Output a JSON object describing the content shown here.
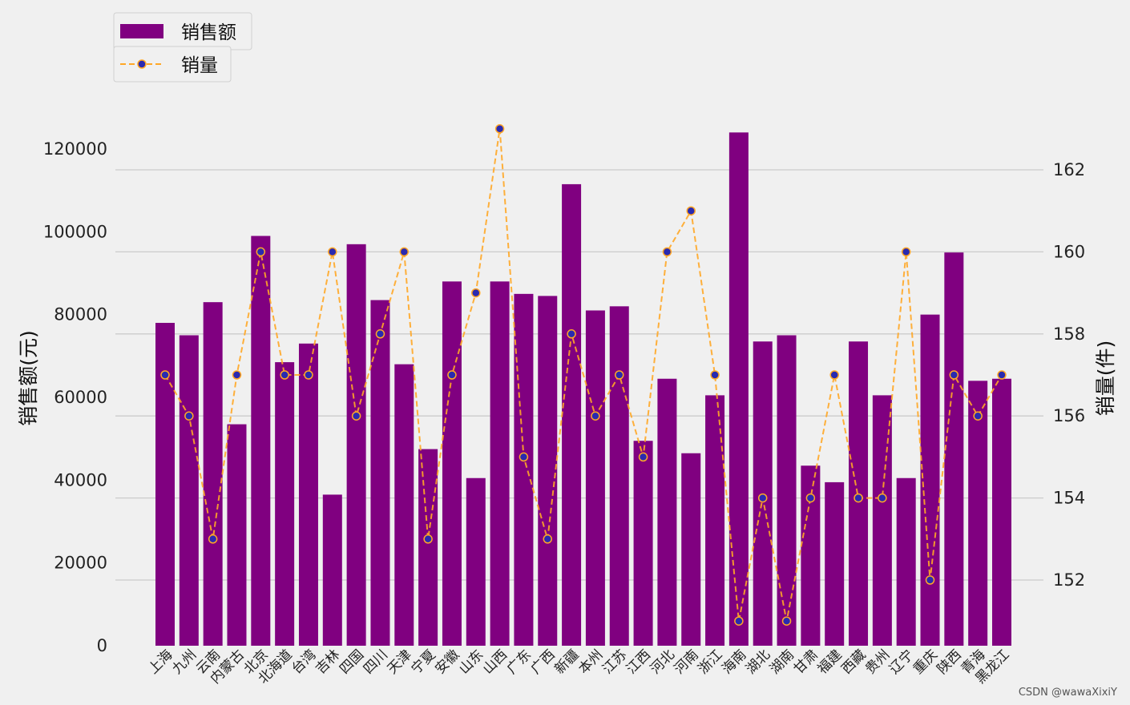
{
  "chart_data": {
    "type": "bar",
    "categories": [
      "上海",
      "九州",
      "云南",
      "内蒙古",
      "北京",
      "北海道",
      "台湾",
      "吉林",
      "四国",
      "四川",
      "天津",
      "宁夏",
      "安徽",
      "山东",
      "山西",
      "广东",
      "广西",
      "新疆",
      "本州",
      "江苏",
      "江西",
      "河北",
      "河南",
      "浙江",
      "海南",
      "湖北",
      "湖南",
      "甘肃",
      "福建",
      "西藏",
      "贵州",
      "辽宁",
      "重庆",
      "陕西",
      "青海",
      "黑龙江"
    ],
    "series": [
      {
        "name": "销售额",
        "type": "bar",
        "axis": "left",
        "color": "#800080",
        "values": [
          78000,
          75000,
          83000,
          53500,
          99000,
          68500,
          73000,
          36500,
          97000,
          83500,
          68000,
          47500,
          88000,
          40500,
          88000,
          85000,
          84500,
          111500,
          81000,
          82000,
          49500,
          64500,
          46500,
          60500,
          124000,
          73500,
          75000,
          43500,
          39500,
          73500,
          60500,
          40500,
          80000,
          95000,
          64000,
          64500
        ]
      },
      {
        "name": "销量",
        "type": "line",
        "axis": "right",
        "color": "#ffa726",
        "marker_color": "#2a2ab0",
        "values": [
          157,
          156,
          153,
          157,
          160,
          157,
          157,
          160,
          156,
          158,
          160,
          153,
          157,
          159,
          163,
          155,
          153,
          158,
          156,
          157,
          155,
          160,
          161,
          157,
          151,
          154,
          151,
          154,
          157,
          154,
          154,
          160,
          152,
          157,
          156,
          157
        ]
      }
    ],
    "y_left": {
      "label": "销售额(元)",
      "lim": [
        0,
        128000
      ],
      "ticks": [
        "0",
        "20000",
        "40000",
        "60000",
        "80000",
        "100000",
        "120000"
      ],
      "tick_values": [
        0,
        20000,
        40000,
        60000,
        80000,
        100000,
        120000
      ]
    },
    "y_right": {
      "label": "销量(件)",
      "lim": [
        150.4,
        163.8
      ],
      "ticks": [
        "152",
        "154",
        "156",
        "158",
        "160",
        "162"
      ],
      "tick_values": [
        152,
        154,
        156,
        158,
        160,
        162
      ]
    },
    "grid": "right-axis horizontal",
    "legend": [
      "销售额",
      "销量"
    ],
    "legend_position": "top-left"
  },
  "watermark": "CSDN @wawaXixiY"
}
